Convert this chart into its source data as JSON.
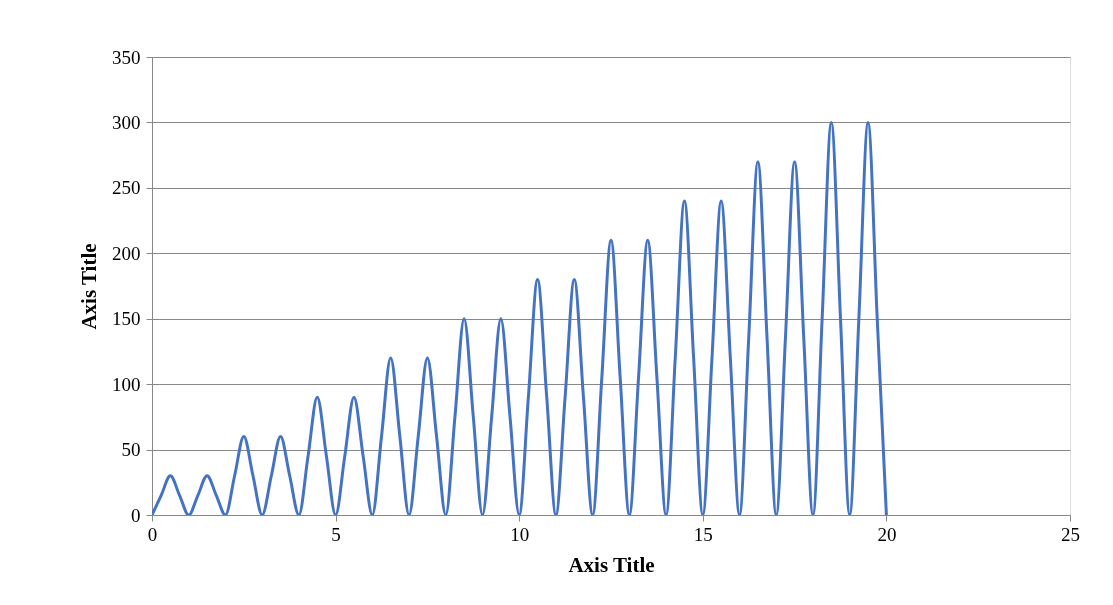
{
  "chart_data": {
    "type": "line",
    "xlabel": "Axis Title",
    "ylabel": "Axis Title",
    "x": [
      0,
      0.25,
      0.5,
      0.75,
      1,
      1.25,
      1.5,
      1.75,
      2,
      2.25,
      2.5,
      2.75,
      3,
      3.25,
      3.5,
      3.75,
      4,
      4.25,
      4.5,
      4.75,
      5,
      5.25,
      5.5,
      5.75,
      6,
      6.25,
      6.5,
      6.75,
      7,
      7.25,
      7.5,
      7.75,
      8,
      8.25,
      8.5,
      8.75,
      9,
      9.25,
      9.5,
      9.75,
      10,
      10.25,
      10.5,
      10.75,
      11,
      11.25,
      11.5,
      11.75,
      12,
      12.25,
      12.5,
      12.75,
      13,
      13.25,
      13.5,
      13.75,
      14,
      14.25,
      14.5,
      14.75,
      15,
      15.25,
      15.5,
      15.75,
      16,
      16.25,
      16.5,
      16.75,
      17,
      17.25,
      17.5,
      17.75,
      18,
      18.25,
      18.5,
      18.75,
      19,
      19.25,
      19.5,
      19.75,
      20
    ],
    "series": [
      {
        "color": "#4472c4",
        "values": [
          0,
          15,
          30,
          15,
          0,
          15,
          30,
          15,
          0,
          30,
          60,
          30,
          0,
          30,
          60,
          30,
          0,
          45,
          90,
          45,
          0,
          45,
          90,
          45,
          0,
          60,
          120,
          60,
          0,
          60,
          120,
          60,
          0,
          75,
          150,
          75,
          0,
          75,
          150,
          75,
          0,
          90,
          180,
          90,
          0,
          90,
          180,
          90,
          0,
          105,
          210,
          105,
          0,
          105,
          210,
          105,
          0,
          120,
          240,
          120,
          0,
          120,
          240,
          120,
          0,
          135,
          270,
          135,
          0,
          135,
          270,
          135,
          0,
          150,
          300,
          150,
          0,
          150,
          300,
          150,
          0
        ]
      }
    ],
    "xlim": [
      0,
      25
    ],
    "xticks": [
      0,
      5,
      10,
      15,
      20,
      25
    ],
    "ylim": [
      0,
      350
    ],
    "yticks": [
      0,
      50,
      100,
      150,
      200,
      250,
      300,
      350
    ],
    "grid": "y",
    "marker": "none",
    "line_style": "solid"
  }
}
